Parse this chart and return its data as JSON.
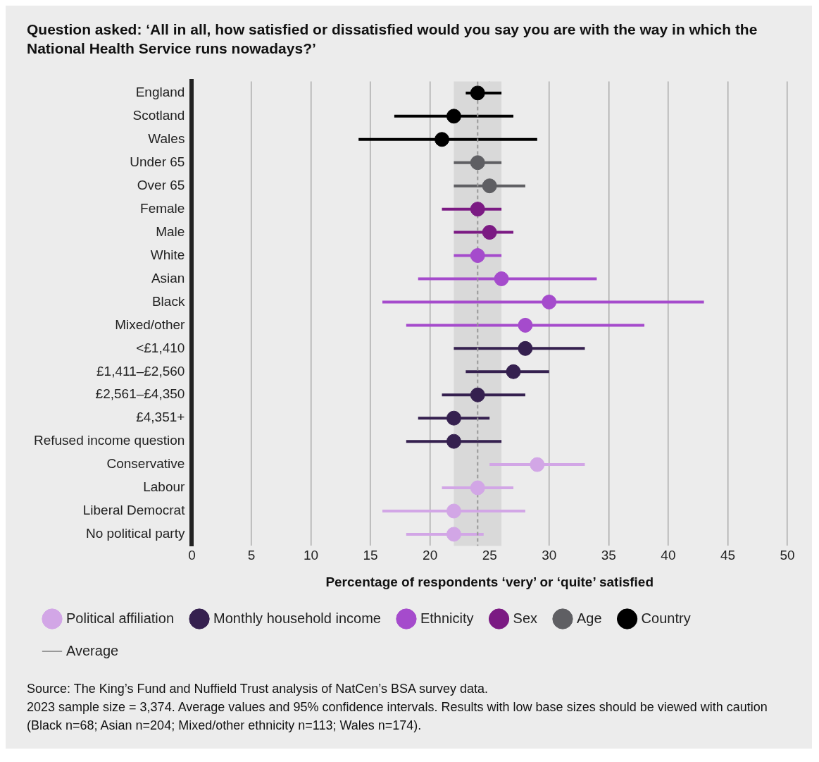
{
  "chart_data": {
    "type": "scatter",
    "title": "Question asked: ‘All in all, how satisfied or dissatisfied would you say you are with the way in which the National Health Service runs nowadays?’",
    "xlabel": "Percentage of respondents ‘very’ or ‘quite’ satisfied",
    "categories": [
      "England",
      "Scotland",
      "Wales",
      "Under 65",
      "Over 65",
      "Female",
      "Male",
      "White",
      "Asian",
      "Black",
      "Mixed/other",
      "<£1,410",
      "£1,411–£2,560",
      "£2,561–£4,350",
      "£4,351+",
      "Refused income question",
      "Conservative",
      "Labour",
      "Liberal Democrat",
      "No political party"
    ],
    "series": [
      {
        "name": "Political affiliation",
        "color": "#d2a6e6",
        "values": [
          null,
          null,
          null,
          null,
          null,
          null,
          null,
          null,
          null,
          null,
          null,
          null,
          null,
          null,
          null,
          null,
          29,
          24,
          22,
          22
        ],
        "errors": [
          null,
          null,
          null,
          null,
          null,
          null,
          null,
          null,
          null,
          null,
          null,
          null,
          null,
          null,
          null,
          null,
          [
            25,
            33
          ],
          [
            21,
            27
          ],
          [
            16,
            28
          ],
          [
            18,
            24.5
          ]
        ]
      },
      {
        "name": "Monthly household income",
        "color": "#35204f",
        "values": [
          null,
          null,
          null,
          null,
          null,
          null,
          null,
          null,
          null,
          null,
          null,
          28,
          27,
          24,
          22,
          22,
          null,
          null,
          null,
          null
        ],
        "errors": [
          null,
          null,
          null,
          null,
          null,
          null,
          null,
          null,
          null,
          null,
          null,
          [
            22,
            33
          ],
          [
            23,
            30
          ],
          [
            21,
            28
          ],
          [
            19,
            25
          ],
          [
            18,
            26
          ],
          null,
          null,
          null,
          null
        ]
      },
      {
        "name": "Ethnicity",
        "color": "#a54bcc",
        "values": [
          null,
          null,
          null,
          null,
          null,
          null,
          null,
          24,
          26,
          30,
          28,
          null,
          null,
          null,
          null,
          null,
          null,
          null,
          null,
          null
        ],
        "errors": [
          null,
          null,
          null,
          null,
          null,
          null,
          null,
          [
            22,
            26
          ],
          [
            19,
            34
          ],
          [
            16,
            43
          ],
          [
            18,
            38
          ],
          null,
          null,
          null,
          null,
          null,
          null,
          null,
          null,
          null
        ]
      },
      {
        "name": "Sex",
        "color": "#7b1a83",
        "values": [
          null,
          null,
          null,
          null,
          null,
          24,
          25,
          null,
          null,
          null,
          null,
          null,
          null,
          null,
          null,
          null,
          null,
          null,
          null,
          null
        ],
        "errors": [
          null,
          null,
          null,
          null,
          null,
          [
            21,
            26
          ],
          [
            22,
            27
          ],
          null,
          null,
          null,
          null,
          null,
          null,
          null,
          null,
          null,
          null,
          null,
          null,
          null
        ]
      },
      {
        "name": "Age",
        "color": "#5f5f63",
        "values": [
          null,
          null,
          null,
          24,
          25,
          null,
          null,
          null,
          null,
          null,
          null,
          null,
          null,
          null,
          null,
          null,
          null,
          null,
          null,
          null
        ],
        "errors": [
          null,
          null,
          null,
          [
            22,
            26
          ],
          [
            22,
            28
          ],
          null,
          null,
          null,
          null,
          null,
          null,
          null,
          null,
          null,
          null,
          null,
          null,
          null,
          null,
          null
        ]
      },
      {
        "name": "Country",
        "color": "#000000",
        "values": [
          24,
          22,
          21,
          null,
          null,
          null,
          null,
          null,
          null,
          null,
          null,
          null,
          null,
          null,
          null,
          null,
          null,
          null,
          null,
          null
        ],
        "errors": [
          [
            23,
            26
          ],
          [
            17,
            27
          ],
          [
            14,
            29
          ],
          null,
          null,
          null,
          null,
          null,
          null,
          null,
          null,
          null,
          null,
          null,
          null,
          null,
          null,
          null,
          null,
          null
        ]
      }
    ],
    "xlim": [
      0,
      50
    ],
    "xticks": [
      0,
      5,
      10,
      15,
      20,
      25,
      30,
      35,
      40,
      45,
      50
    ],
    "ref_lines": [
      {
        "axis": "x",
        "value": 24,
        "label": "Average",
        "color": "#999999",
        "line_style": "dashed"
      }
    ],
    "bands": [
      {
        "axis": "x",
        "from": 22,
        "to": 26,
        "color": "#d9d9d9"
      }
    ],
    "orientation": "horizontal",
    "grid": "x",
    "legend": "bottom",
    "marker": "circle",
    "annotations": [
      "Source: The King’s Fund and Nuffield Trust analysis of NatCen’s BSA survey data.",
      "2023 sample size = 3,374. Average values and 95% confidence intervals. Results with low base sizes should be viewed with caution (Black n=68; Asian n=204; Mixed/other ethnicity n=113; Wales n=174)."
    ]
  }
}
